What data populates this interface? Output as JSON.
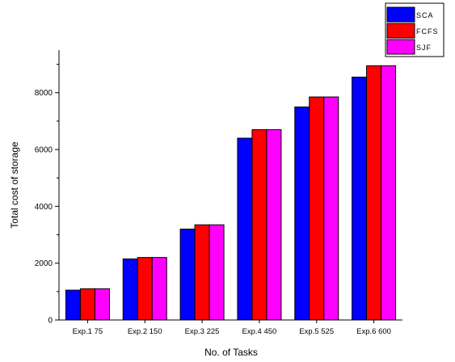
{
  "chart_data": {
    "type": "bar",
    "title": "",
    "xlabel": "No. of Tasks",
    "ylabel": "Total cost of storage",
    "categories": [
      "Exp.1 75",
      "Exp.2 150",
      "Exp.3 225",
      "Exp.4 450",
      "Exp.5 525",
      "Exp.6 600"
    ],
    "series": [
      {
        "name": "SCA",
        "color": "#0000ff",
        "values": [
          1050,
          2150,
          3200,
          6400,
          7500,
          8550
        ]
      },
      {
        "name": "FCFS",
        "color": "#ff0000",
        "values": [
          1100,
          2200,
          3350,
          6700,
          7850,
          8950
        ]
      },
      {
        "name": "SJF",
        "color": "#ff00ff",
        "values": [
          1100,
          2200,
          3350,
          6700,
          7850,
          8950
        ]
      }
    ],
    "ylim": [
      0,
      9500
    ],
    "yticks": [
      0,
      2000,
      4000,
      6000,
      8000
    ],
    "yticks_minor": [
      1000,
      3000,
      5000,
      7000,
      9000
    ],
    "grid": false,
    "legend_position": "top-right, outside plot"
  }
}
